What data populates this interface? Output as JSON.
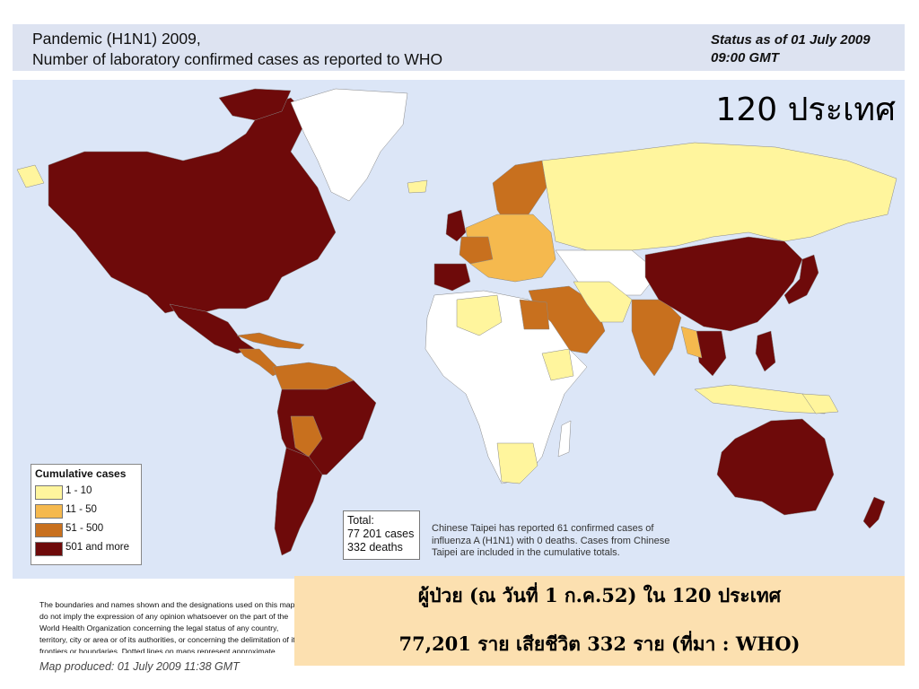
{
  "header": {
    "title_line1": "Pandemic (H1N1) 2009,",
    "title_line2": "Number of  laboratory confirmed cases as reported to WHO",
    "status_line1": "Status as of 01 July 2009",
    "status_line2": "09:00 GMT"
  },
  "map": {
    "country_count_label": "120 ประเทศ",
    "colors": {
      "ocean": "#dce6f7",
      "no_data": "#ffffff",
      "c1_10": "#fff59d",
      "c11_50": "#f5b94e",
      "c51_500": "#c8701e",
      "c501_more": "#6e0a0a"
    },
    "regions": [
      {
        "name": "North America",
        "category": "501 and more"
      },
      {
        "name": "Greenland",
        "category": "no data"
      },
      {
        "name": "Mexico",
        "category": "501 and more"
      },
      {
        "name": "Central America",
        "category": "51 - 500"
      },
      {
        "name": "Brazil",
        "category": "501 and more"
      },
      {
        "name": "Argentina",
        "category": "501 and more"
      },
      {
        "name": "Chile",
        "category": "501 and more"
      },
      {
        "name": "Russia",
        "category": "1 - 10"
      },
      {
        "name": "China",
        "category": "501 and more"
      },
      {
        "name": "Australia",
        "category": "501 and more"
      },
      {
        "name": "India",
        "category": "51 - 500"
      },
      {
        "name": "United Kingdom",
        "category": "501 and more"
      },
      {
        "name": "Spain",
        "category": "501 and more"
      },
      {
        "name": "Japan",
        "category": "501 and more"
      },
      {
        "name": "Thailand",
        "category": "501 and more"
      },
      {
        "name": "Philippines",
        "category": "501 and more"
      },
      {
        "name": "New Zealand",
        "category": "501 and more"
      },
      {
        "name": "Africa",
        "category": "no data"
      },
      {
        "name": "South Africa",
        "category": "1 - 10"
      }
    ]
  },
  "legend": {
    "title": "Cumulative cases",
    "items": [
      {
        "label": "1 - 10",
        "color": "#fff59d"
      },
      {
        "label": "11 - 50",
        "color": "#f5b94e"
      },
      {
        "label": "51 - 500",
        "color": "#c8701e"
      },
      {
        "label": "501 and more",
        "color": "#6e0a0a"
      }
    ]
  },
  "totals": {
    "label": "Total:",
    "cases": "77 201 cases",
    "deaths": "332 deaths"
  },
  "taipei_note": "Chinese Taipei has reported 61 confirmed cases of influenza A (H1N1) with 0 deaths. Cases from Chinese Taipei are included in the cumulative totals.",
  "disclaimer": "The boundaries and names shown and the designations used on this map do not imply the expression of any opinion whatsoever on the part of the World Health Organization concerning the legal status of any country, territory, city or area or of its authorities, or concerning the delimitation of its frontiers or boundaries. Dotted lines on maps represent approximate border lines for which there may not yet be full agreement.",
  "map_produced": "Map produced: 01 July 2009 11:38 GMT",
  "thai_summary": {
    "line1": "ผู้ป่วย (ณ วันที่ 1 ก.ค.52) ใน 120 ประเทศ",
    "line2": "77,201 ราย เสียชีวิต 332 ราย  (ที่มา : WHO)"
  }
}
